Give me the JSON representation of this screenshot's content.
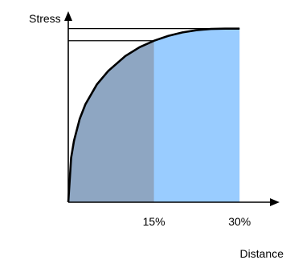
{
  "chart_data": {
    "type": "area",
    "xlabel": "Distance",
    "ylabel": "Stress",
    "x_unit": "%",
    "xlim": [
      0,
      37
    ],
    "ylim": [
      0,
      1.1
    ],
    "x_tick_labels": [
      "15%",
      "30%"
    ],
    "x_ticks": [
      15,
      30
    ],
    "grid": false,
    "legend": "none",
    "curve": {
      "x": [
        0,
        0.5,
        1,
        2,
        3,
        5,
        7,
        10,
        12.5,
        15,
        17.5,
        20,
        22.5,
        25,
        27.5,
        30
      ],
      "y": [
        0,
        0.256,
        0.354,
        0.48,
        0.564,
        0.678,
        0.756,
        0.842,
        0.893,
        0.93,
        0.958,
        0.978,
        0.991,
        0.998,
        1.0,
        1.0
      ]
    },
    "shaded_regions": [
      {
        "x_end": 30,
        "color": "#99ccff"
      },
      {
        "x_end": 15,
        "color": "#8ea6c2"
      }
    ],
    "reference_lines": [
      {
        "at_x": 15,
        "y": 0.93
      },
      {
        "at_x": 30,
        "y": 1.0
      }
    ],
    "colors": {
      "axis": "#000000",
      "curve": "#000000",
      "ref_line": "#000000"
    }
  }
}
